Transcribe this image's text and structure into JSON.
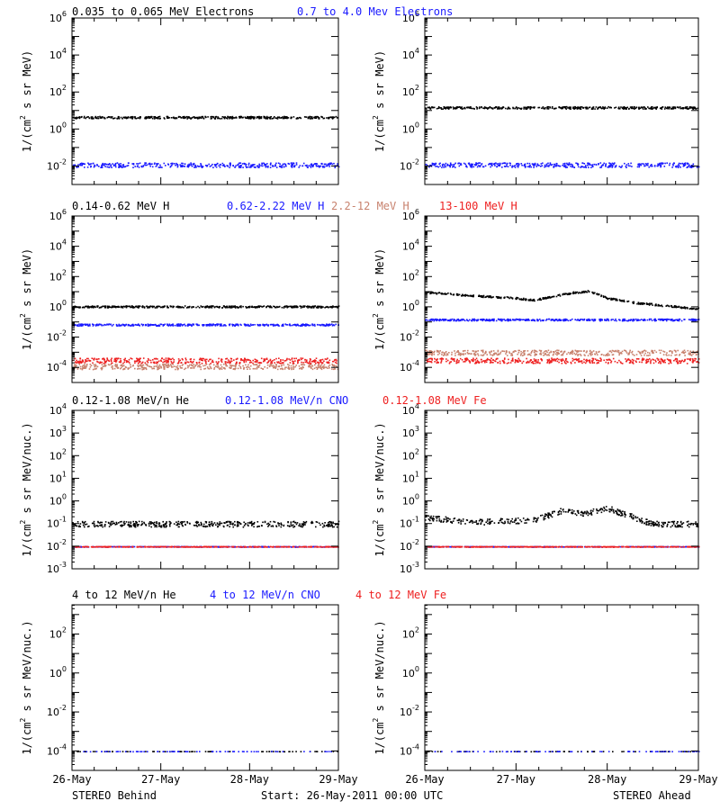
{
  "colors": {
    "black": "#000000",
    "blue": "#1a1aff",
    "salmon": "#c8826e",
    "red": "#ee2020"
  },
  "footer": {
    "left": "STEREO Behind",
    "center": "Start: 26-May-2011 00:00 UTC",
    "right": "STEREO Ahead"
  },
  "xaxis": {
    "ticks": [
      "26-May",
      "27-May",
      "28-May",
      "29-May"
    ],
    "range_days": [
      0,
      3
    ]
  },
  "rows": [
    {
      "id": "electrons",
      "legend": [
        {
          "text": "0.035 to 0.065 MeV Electrons",
          "color": "#000000"
        },
        {
          "text": "0.7 to 4.0 Mev Electrons",
          "color": "#1a1aff"
        }
      ],
      "ylabel_pre": "1/(cm",
      "ylabel_sup": "2",
      "ylabel_post": " s sr MeV)",
      "ylog_range": [
        -3,
        6
      ],
      "yticks": [
        {
          "base": "10",
          "exp": "6",
          "v": 6
        },
        {
          "base": "10",
          "exp": "4",
          "v": 4
        },
        {
          "base": "10",
          "exp": "2",
          "v": 2
        },
        {
          "base": "10",
          "exp": "0",
          "v": 0
        },
        {
          "base": "10",
          "exp": "-2",
          "v": -2
        }
      ]
    },
    {
      "id": "protons",
      "legend": [
        {
          "text": "0.14-0.62 MeV H",
          "color": "#000000"
        },
        {
          "text": "0.62-2.22 MeV H",
          "color": "#1a1aff"
        },
        {
          "text": "2.2-12 MeV H",
          "color": "#c8826e"
        },
        {
          "text": "13-100 MeV H",
          "color": "#ee2020"
        }
      ],
      "ylabel_pre": "1/(cm",
      "ylabel_sup": "2",
      "ylabel_post": " s sr MeV)",
      "ylog_range": [
        -5,
        6
      ],
      "yticks": [
        {
          "base": "10",
          "exp": "6",
          "v": 6
        },
        {
          "base": "10",
          "exp": "4",
          "v": 4
        },
        {
          "base": "10",
          "exp": "2",
          "v": 2
        },
        {
          "base": "10",
          "exp": "0",
          "v": 0
        },
        {
          "base": "10",
          "exp": "-2",
          "v": -2
        },
        {
          "base": "10",
          "exp": "-4",
          "v": -4
        }
      ]
    },
    {
      "id": "heavy-low",
      "legend": [
        {
          "text": "0.12-1.08 MeV/n He",
          "color": "#000000"
        },
        {
          "text": "0.12-1.08 MeV/n CNO",
          "color": "#1a1aff"
        },
        {
          "text": "0.12-1.08 MeV Fe",
          "color": "#ee2020"
        }
      ],
      "ylabel_pre": "1/(cm",
      "ylabel_sup": "2",
      "ylabel_post": " s sr MeV/nuc.)",
      "ylog_range": [
        -3,
        4
      ],
      "yticks": [
        {
          "base": "10",
          "exp": "4",
          "v": 4
        },
        {
          "base": "10",
          "exp": "3",
          "v": 3
        },
        {
          "base": "10",
          "exp": "2",
          "v": 2
        },
        {
          "base": "10",
          "exp": "1",
          "v": 1
        },
        {
          "base": "10",
          "exp": "0",
          "v": 0
        },
        {
          "base": "10",
          "exp": "-1",
          "v": -1
        },
        {
          "base": "10",
          "exp": "-2",
          "v": -2
        },
        {
          "base": "10",
          "exp": "-3",
          "v": -3
        }
      ]
    },
    {
      "id": "heavy-high",
      "legend": [
        {
          "text": "4 to 12 MeV/n He",
          "color": "#000000"
        },
        {
          "text": "4 to 12 MeV/n CNO",
          "color": "#1a1aff"
        },
        {
          "text": "4 to 12 MeV Fe",
          "color": "#ee2020"
        }
      ],
      "ylabel_pre": "1/(cm",
      "ylabel_sup": "2",
      "ylabel_post": " s sr MeV/nuc.)",
      "ylog_range": [
        -5,
        3.5
      ],
      "yticks": [
        {
          "base": "10",
          "exp": "2",
          "v": 2
        },
        {
          "base": "10",
          "exp": "0",
          "v": 0
        },
        {
          "base": "10",
          "exp": "-2",
          "v": -2
        },
        {
          "base": "10",
          "exp": "-4",
          "v": -4
        }
      ]
    }
  ],
  "chart_data": [
    {
      "type": "scatter",
      "panel": "behind-electrons",
      "ylog": true,
      "series": [
        {
          "name": "0.035 to 0.065 MeV Electrons",
          "level": 4.5,
          "color": "#000000"
        },
        {
          "name": "0.7 to 4.0 Mev Electrons",
          "level": 0.012,
          "color": "#1a1aff"
        }
      ]
    },
    {
      "type": "scatter",
      "panel": "ahead-electrons",
      "ylog": true,
      "series": [
        {
          "name": "0.035 to 0.065 MeV Electrons",
          "level": 15,
          "color": "#000000"
        },
        {
          "name": "0.7 to 4.0 Mev Electrons",
          "level": 0.012,
          "color": "#1a1aff"
        }
      ]
    },
    {
      "type": "scatter",
      "panel": "behind-protons",
      "ylog": true,
      "series": [
        {
          "name": "0.14-0.62 MeV H",
          "level": 1.1,
          "color": "#000000"
        },
        {
          "name": "0.62-2.22 MeV H",
          "level": 0.07,
          "color": "#1a1aff"
        },
        {
          "name": "2.2-12 MeV H",
          "level": 0.00012,
          "color": "#c8826e"
        },
        {
          "name": "13-100 MeV H",
          "level": 0.0003,
          "color": "#ee2020"
        }
      ]
    },
    {
      "type": "scatter",
      "panel": "ahead-protons",
      "ylog": true,
      "series": [
        {
          "name": "0.14-0.62 MeV H",
          "x_days": [
            0,
            0.5,
            1.0,
            1.2,
            1.5,
            1.6,
            1.8,
            2.0,
            2.3,
            3.0
          ],
          "y": [
            10,
            6,
            4,
            3,
            7,
            9,
            12,
            4,
            2,
            0.8
          ],
          "color": "#000000"
        },
        {
          "name": "0.62-2.22 MeV H",
          "level": 0.15,
          "color": "#1a1aff"
        },
        {
          "name": "2.2-12 MeV H",
          "level": 0.001,
          "color": "#c8826e"
        },
        {
          "name": "13-100 MeV H",
          "level": 0.0003,
          "color": "#ee2020"
        }
      ]
    },
    {
      "type": "scatter",
      "panel": "behind-heavy-low",
      "ylog": true,
      "series": [
        {
          "name": "0.12-1.08 MeV/n He",
          "level": 0.1,
          "color": "#000000"
        },
        {
          "name": "0.12-1.08 MeV/n CNO",
          "level": 0.01,
          "color": "#1a1aff"
        },
        {
          "name": "0.12-1.08 MeV Fe",
          "level": 0.01,
          "color": "#ee2020"
        }
      ]
    },
    {
      "type": "scatter",
      "panel": "ahead-heavy-low",
      "ylog": true,
      "series": [
        {
          "name": "0.12-1.08 MeV/n He",
          "x_days": [
            0,
            0.5,
            1.2,
            1.5,
            1.75,
            2.0,
            2.5,
            3.0
          ],
          "y": [
            0.2,
            0.12,
            0.15,
            0.4,
            0.3,
            0.5,
            0.1,
            0.1
          ],
          "color": "#000000"
        },
        {
          "name": "0.12-1.08 MeV/n CNO",
          "level": 0.01,
          "color": "#1a1aff"
        },
        {
          "name": "0.12-1.08 MeV Fe",
          "level": 0.01,
          "color": "#ee2020"
        }
      ]
    },
    {
      "type": "scatter",
      "panel": "behind-heavy-high",
      "ylog": true,
      "series": [
        {
          "name": "4 to 12 MeV/n He",
          "level": 0.0001,
          "color": "#000000"
        },
        {
          "name": "4 to 12 MeV/n CNO",
          "level": 0.0001,
          "color": "#1a1aff"
        }
      ]
    },
    {
      "type": "scatter",
      "panel": "ahead-heavy-high",
      "ylog": true,
      "series": [
        {
          "name": "4 to 12 MeV/n He",
          "level": 0.0001,
          "color": "#000000"
        },
        {
          "name": "4 to 12 MeV/n CNO",
          "level": 0.0001,
          "color": "#1a1aff"
        }
      ]
    }
  ]
}
